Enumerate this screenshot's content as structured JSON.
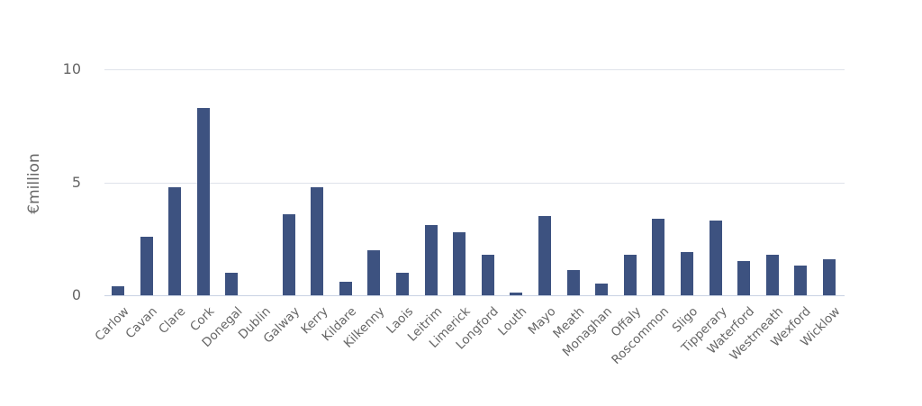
{
  "chart_data": {
    "type": "bar",
    "title": "",
    "xlabel": "",
    "ylabel": "€million",
    "ylim": [
      0,
      10
    ],
    "yticks": [
      0,
      5,
      10
    ],
    "grid": true,
    "legend": null,
    "bar_color": "#3d5280",
    "categories": [
      "Carlow",
      "Cavan",
      "Clare",
      "Cork",
      "Donegal",
      "Dublin",
      "Galway",
      "Kerry",
      "Kildare",
      "Kilkenny",
      "Laois",
      "Leitrim",
      "Limerick",
      "Longford",
      "Louth",
      "Mayo",
      "Meath",
      "Monaghan",
      "Offaly",
      "Roscommon",
      "Sligo",
      "Tipperary",
      "Waterford",
      "Westmeath",
      "Wexford",
      "Wicklow"
    ],
    "values": [
      0.4,
      2.6,
      4.8,
      8.3,
      1.0,
      0,
      3.6,
      4.8,
      0.6,
      2.0,
      1.0,
      3.1,
      2.8,
      1.8,
      0.1,
      3.5,
      1.1,
      0.5,
      1.8,
      3.4,
      1.9,
      3.3,
      1.5,
      1.8,
      1.3,
      1.6
    ]
  }
}
